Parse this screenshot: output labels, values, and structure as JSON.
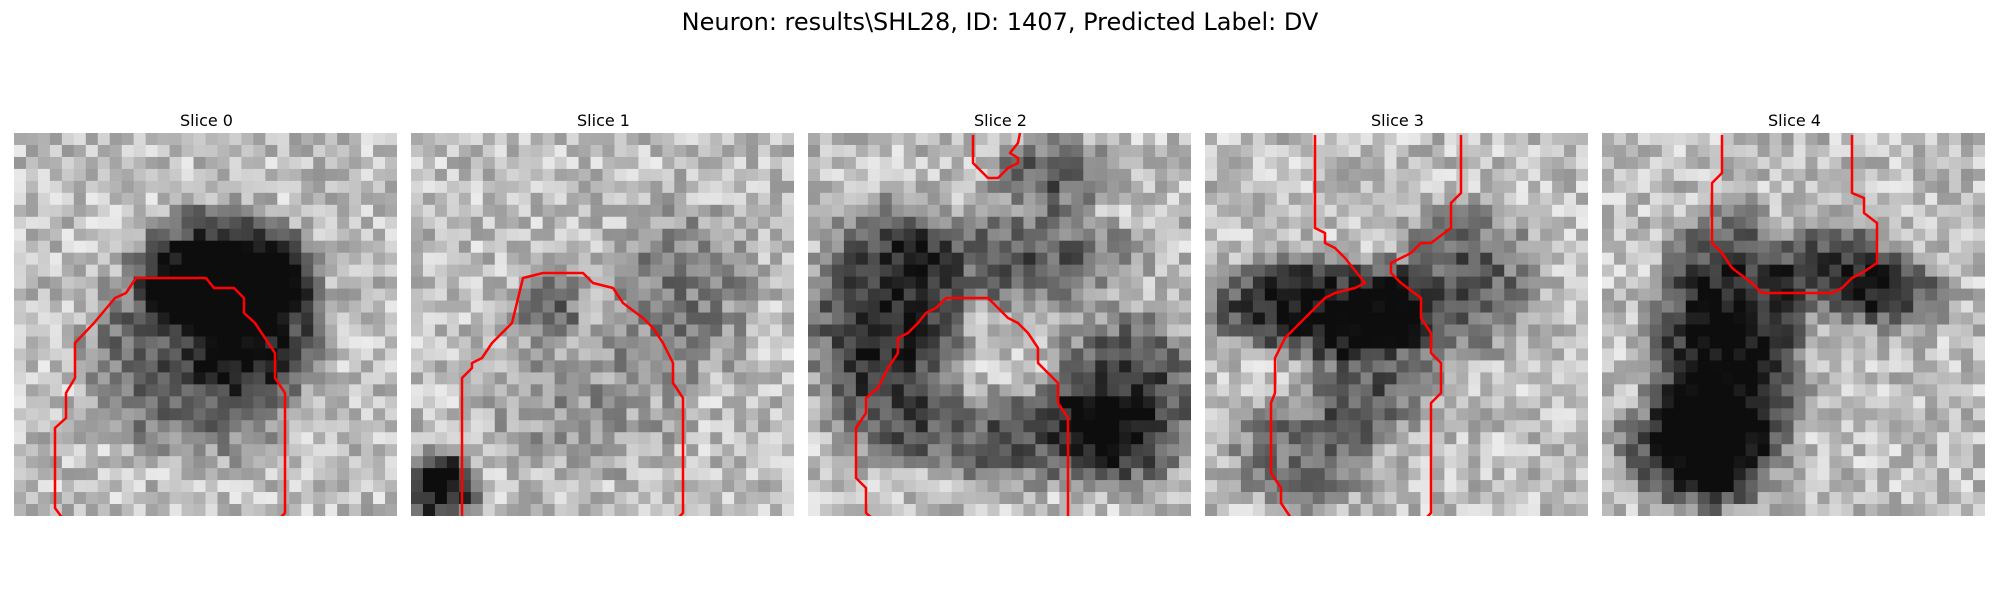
{
  "figure": {
    "title": "Neuron: results\\SHL28, ID: 1407, Predicted Label: DV"
  },
  "panels": [
    {
      "title": "Slice 0",
      "seed": 11
    },
    {
      "title": "Slice 1",
      "seed": 23
    },
    {
      "title": "Slice 2",
      "seed": 37
    },
    {
      "title": "Slice 3",
      "seed": 41
    },
    {
      "title": "Slice 4",
      "seed": 59
    }
  ],
  "colors": {
    "contour": "#ff0000"
  }
}
